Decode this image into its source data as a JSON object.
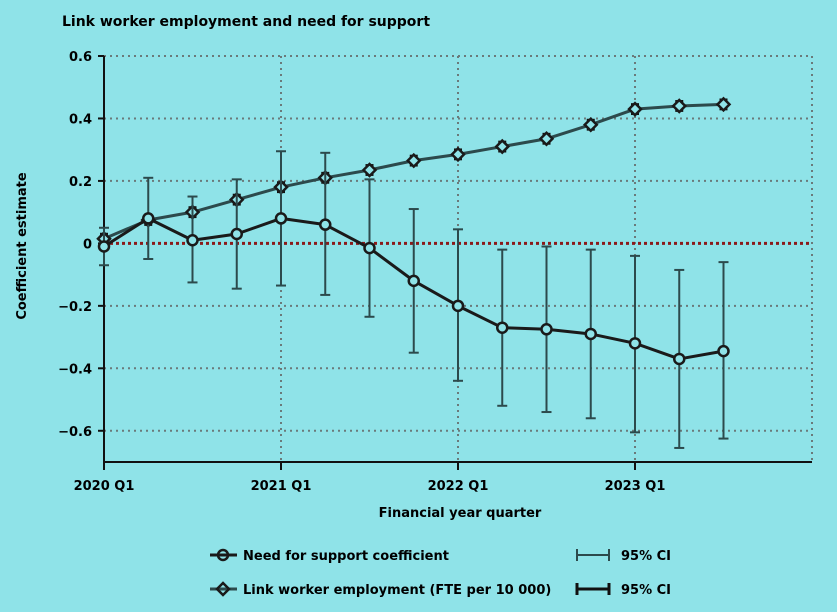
{
  "chart_data": {
    "type": "line",
    "title": "Link worker employment and need for support",
    "xlabel": "Financial year quarter",
    "ylabel": "Coefficient estimate",
    "ylim": [
      -0.7,
      0.6
    ],
    "yticks": [
      -0.6,
      -0.4,
      -0.2,
      0,
      0.2,
      0.4,
      0.6
    ],
    "ytick_labels": [
      "−0.6",
      "−0.4",
      "−0.2",
      "0",
      "0.2",
      "0.4",
      "0.6"
    ],
    "xlim": [
      0,
      16
    ],
    "xticks": [
      0,
      4,
      8,
      12
    ],
    "xtick_labels": [
      "2020 Q1",
      "2021 Q1",
      "2022 Q1",
      "2023 Q1"
    ],
    "reference_line": 0,
    "series": [
      {
        "name": "Need for support coefficient",
        "marker": "circle",
        "ci_label": "95% CI",
        "x": [
          0,
          1,
          2,
          3,
          4,
          5,
          6,
          7,
          8,
          9,
          10,
          11,
          12,
          13,
          14
        ],
        "values": [
          -0.01,
          0.08,
          0.01,
          0.03,
          0.08,
          0.06,
          -0.015,
          -0.12,
          -0.2,
          -0.27,
          -0.275,
          -0.29,
          -0.32,
          -0.37,
          -0.345
        ],
        "ci_low": [
          -0.07,
          -0.05,
          -0.125,
          -0.145,
          -0.135,
          -0.165,
          -0.235,
          -0.35,
          -0.44,
          -0.52,
          -0.54,
          -0.56,
          -0.605,
          -0.655,
          -0.625
        ],
        "ci_high": [
          0.05,
          0.21,
          0.15,
          0.205,
          0.295,
          0.29,
          0.205,
          0.11,
          0.045,
          -0.02,
          -0.01,
          -0.02,
          -0.04,
          -0.085,
          -0.06
        ]
      },
      {
        "name": "Link worker employment (FTE per 10 000)",
        "marker": "diamond",
        "ci_label": "95% CI",
        "x": [
          0,
          1,
          2,
          3,
          4,
          5,
          6,
          7,
          8,
          9,
          10,
          11,
          12,
          13,
          14
        ],
        "values": [
          0.015,
          0.075,
          0.1,
          0.14,
          0.18,
          0.21,
          0.235,
          0.265,
          0.285,
          0.31,
          0.335,
          0.38,
          0.43,
          0.44,
          0.445
        ],
        "ci_low": [
          0.0,
          0.06,
          0.085,
          0.125,
          0.165,
          0.195,
          0.22,
          0.25,
          0.27,
          0.295,
          0.32,
          0.365,
          0.415,
          0.425,
          0.43
        ],
        "ci_high": [
          0.03,
          0.09,
          0.115,
          0.155,
          0.195,
          0.225,
          0.25,
          0.28,
          0.3,
          0.325,
          0.35,
          0.395,
          0.445,
          0.455,
          0.46
        ]
      }
    ],
    "legend": [
      {
        "label": "Need for support coefficient",
        "ci_label": "95% CI"
      },
      {
        "label": "Link worker employment (FTE per 10 000)",
        "ci_label": "95% CI"
      }
    ]
  },
  "colors": {
    "background": "#8fe3e8",
    "line": "#1a1a1a",
    "line2": "#2c4a4c",
    "grid": "#6a7a7a",
    "reference": "#8b1a1a"
  }
}
